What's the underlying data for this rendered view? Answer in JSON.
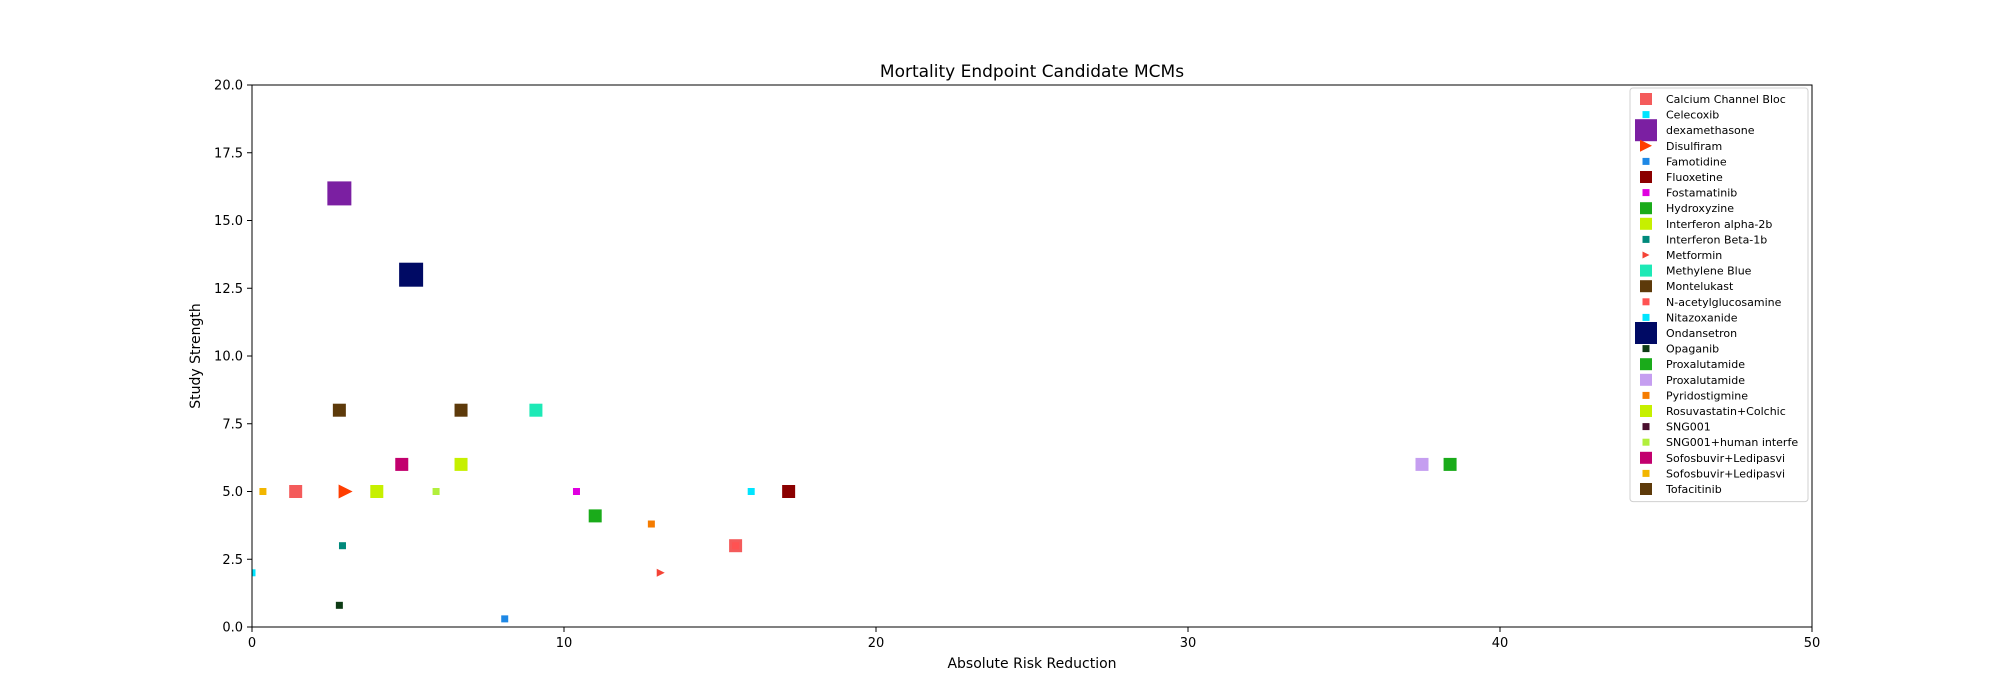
{
  "chart_data": {
    "type": "scatter",
    "title": "Mortality Endpoint Candidate MCMs",
    "xlabel": "Absolute Risk Reduction",
    "ylabel": "Study Strength",
    "xlim": [
      0,
      50
    ],
    "ylim": [
      0,
      20
    ],
    "x_ticks": [
      0,
      10,
      20,
      30,
      40,
      50
    ],
    "y_ticks": [
      0.0,
      2.5,
      5.0,
      7.5,
      10.0,
      12.5,
      15.0,
      17.5,
      20.0
    ],
    "x_tick_labels": [
      "0",
      "10",
      "20",
      "30",
      "40",
      "50"
    ],
    "y_tick_labels": [
      "0.0",
      "2.5",
      "5.0",
      "7.5",
      "10.0",
      "12.5",
      "15.0",
      "17.5",
      "20.0"
    ],
    "grid": false,
    "legend_position": "top-right",
    "series": [
      {
        "name": "Calcium Channel Bloc",
        "color": "#f45b5b",
        "marker": "square",
        "size": 13,
        "points": [
          [
            1.4,
            5.0
          ],
          [
            15.5,
            3.0
          ]
        ]
      },
      {
        "name": "Celecoxib",
        "color": "#00e5ff",
        "marker": "square",
        "size": 7,
        "points": [
          [
            16.0,
            5.0
          ]
        ]
      },
      {
        "name": "dexamethasone",
        "color": "#7b1fa2",
        "marker": "square",
        "size": 24,
        "points": [
          [
            2.8,
            16.0
          ]
        ]
      },
      {
        "name": "Disulfiram",
        "color": "#ff3d00",
        "marker": "triangle-right",
        "size": 14,
        "points": [
          [
            3.0,
            5.0
          ]
        ]
      },
      {
        "name": "Famotidine",
        "color": "#1e88e5",
        "marker": "square",
        "size": 7,
        "points": [
          [
            8.1,
            0.3
          ]
        ]
      },
      {
        "name": "Fluoxetine",
        "color": "#8b0000",
        "marker": "square",
        "size": 13,
        "points": [
          [
            17.2,
            5.0
          ]
        ]
      },
      {
        "name": "Fostamatinib",
        "color": "#e000e0",
        "marker": "square",
        "size": 7,
        "points": [
          [
            10.4,
            5.0
          ]
        ]
      },
      {
        "name": "Hydroxyzine",
        "color": "#1aab1a",
        "marker": "square",
        "size": 13,
        "points": [
          [
            11.0,
            4.1
          ]
        ]
      },
      {
        "name": "Interferon alpha-2b",
        "color": "#c6f000",
        "marker": "square",
        "size": 13,
        "points": [
          [
            4.0,
            5.0
          ]
        ]
      },
      {
        "name": "Interferon Beta-1b",
        "color": "#00897b",
        "marker": "square",
        "size": 7,
        "points": [
          [
            2.9,
            3.0
          ]
        ]
      },
      {
        "name": "Metformin",
        "color": "#f44336",
        "marker": "triangle-right",
        "size": 8,
        "points": [
          [
            13.1,
            2.0
          ]
        ]
      },
      {
        "name": "Methylene Blue",
        "color": "#1de9b6",
        "marker": "square",
        "size": 13,
        "points": [
          [
            9.1,
            8.0
          ]
        ]
      },
      {
        "name": "Montelukast",
        "color": "#5d3a0a",
        "marker": "square",
        "size": 13,
        "points": [
          [
            2.8,
            8.0
          ],
          [
            6.7,
            8.0
          ]
        ]
      },
      {
        "name": "N-acetylglucosamine",
        "color": "#ff5252",
        "marker": "square",
        "size": 7,
        "points": [
          [
            15.5,
            3.0
          ]
        ]
      },
      {
        "name": "Nitazoxanide",
        "color": "#00e5ff",
        "marker": "square",
        "size": 7,
        "points": [
          [
            0.0,
            2.0
          ]
        ]
      },
      {
        "name": "Ondansetron",
        "color": "#000a64",
        "marker": "square",
        "size": 24,
        "points": [
          [
            5.1,
            13.0
          ]
        ]
      },
      {
        "name": "Opaganib",
        "color": "#0d3b14",
        "marker": "square",
        "size": 7,
        "points": [
          [
            2.8,
            0.8
          ]
        ]
      },
      {
        "name": "Proxalutamide",
        "color": "#1aab1a",
        "marker": "square",
        "size": 13,
        "points": [
          [
            38.4,
            6.0
          ]
        ]
      },
      {
        "name": "Proxalutamide",
        "color": "#c59ef0",
        "marker": "square",
        "size": 13,
        "points": [
          [
            37.5,
            6.0
          ]
        ]
      },
      {
        "name": "Pyridostigmine",
        "color": "#f57c00",
        "marker": "square",
        "size": 7,
        "points": [
          [
            12.8,
            3.8
          ]
        ]
      },
      {
        "name": "Rosuvastatin+Colchic",
        "color": "#c6f000",
        "marker": "square",
        "size": 13,
        "points": [
          [
            6.7,
            6.0
          ]
        ]
      },
      {
        "name": "SNG001",
        "color": "#4a0e2e",
        "marker": "square",
        "size": 7,
        "points": []
      },
      {
        "name": "SNG001+human interfe",
        "color": "#b2ef3c",
        "marker": "square",
        "size": 7,
        "points": [
          [
            5.9,
            5.0
          ]
        ]
      },
      {
        "name": "Sofosbuvir+Ledipasvi",
        "color": "#c2006e",
        "marker": "square",
        "size": 13,
        "points": [
          [
            4.8,
            6.0
          ]
        ]
      },
      {
        "name": "Sofosbuvir+Ledipasvi",
        "color": "#f2b600",
        "marker": "square",
        "size": 7,
        "points": [
          [
            0.35,
            5.0
          ]
        ]
      },
      {
        "name": "Tofacitinib",
        "color": "#5d3a0a",
        "marker": "square",
        "size": 13,
        "points": []
      }
    ]
  }
}
